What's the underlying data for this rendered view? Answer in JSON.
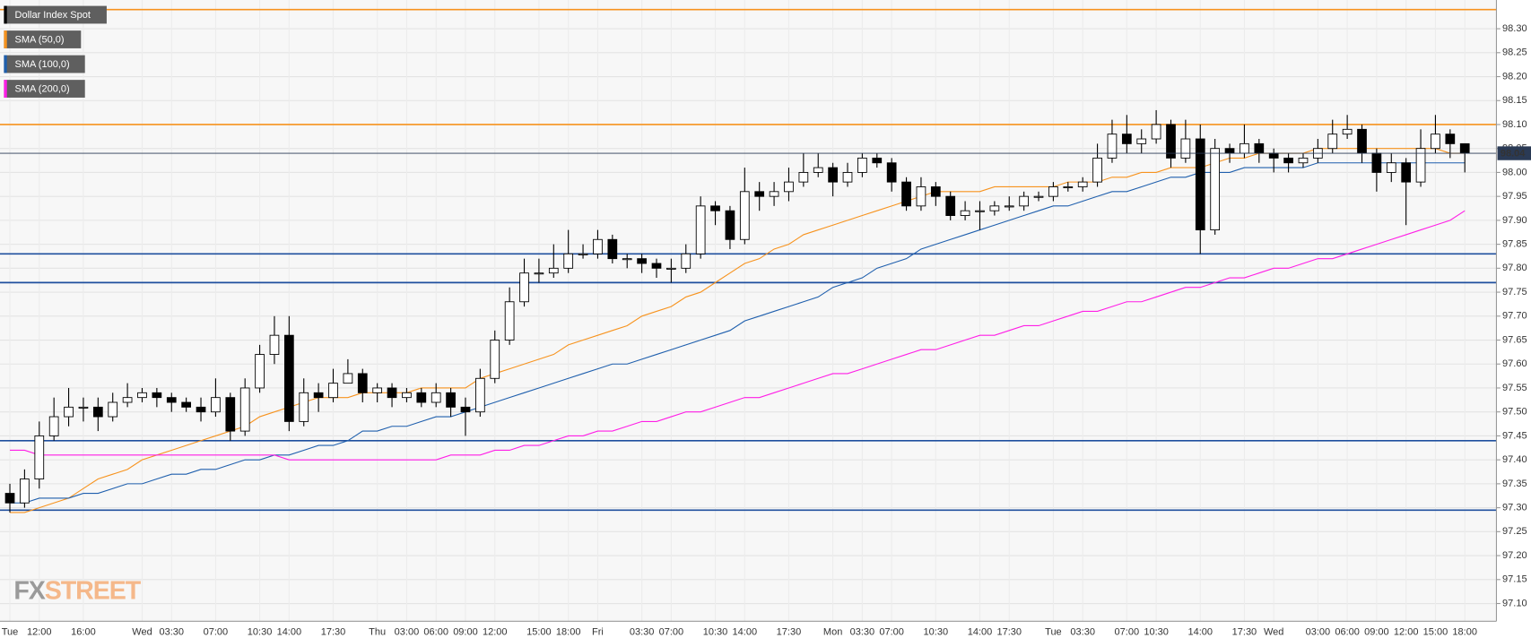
{
  "chart_data": {
    "type": "candlestick",
    "categories": [
      "Tue",
      null,
      "12:00",
      null,
      null,
      "16:00",
      null,
      null,
      null,
      "Wed",
      null,
      "03:30",
      null,
      null,
      "07:00",
      null,
      null,
      "10:30",
      null,
      "14:00",
      null,
      null,
      "17:30",
      null,
      null,
      "Thu",
      null,
      "03:00",
      null,
      "06:00",
      null,
      "09:00",
      null,
      "12:00",
      null,
      null,
      "15:00",
      null,
      "18:00",
      null,
      "Fri",
      null,
      null,
      "03:30",
      null,
      "07:00",
      null,
      null,
      "10:30",
      null,
      "14:00",
      null,
      null,
      "17:30",
      null,
      null,
      "Mon",
      null,
      "03:30",
      null,
      "07:00",
      null,
      null,
      "10:30",
      null,
      null,
      "14:00",
      null,
      "17:30",
      null,
      null,
      "Tue",
      null,
      "03:30",
      null,
      null,
      "07:00",
      null,
      "10:30",
      null,
      null,
      "14:00",
      null,
      null,
      "17:30",
      null,
      "Wed",
      null,
      null,
      "03:00",
      null,
      "06:00",
      null,
      "09:00",
      null,
      "12:00",
      null,
      "15:00",
      null,
      "18:00"
    ],
    "series": [
      {
        "name": "Dollar Index Spot",
        "color": "#000000",
        "open": [
          97.33,
          97.31,
          97.36,
          97.45,
          97.49,
          97.51,
          97.51,
          97.49,
          97.52,
          97.53,
          97.54,
          97.53,
          97.52,
          97.51,
          97.5,
          97.53,
          97.46,
          97.55,
          97.62,
          97.66,
          97.48,
          97.54,
          97.53,
          97.56,
          97.58,
          97.54,
          97.55,
          97.53,
          97.54,
          97.52,
          97.54,
          97.51,
          97.5,
          97.57,
          97.65,
          97.73,
          97.79,
          97.79,
          97.8,
          97.83,
          97.83,
          97.86,
          97.82,
          97.82,
          97.81,
          97.8,
          97.8,
          97.83,
          97.93,
          97.92,
          97.86,
          97.96,
          97.95,
          97.96,
          97.98,
          98.0,
          98.01,
          97.98,
          98.0,
          98.03,
          98.02,
          97.98,
          97.93,
          97.97,
          97.95,
          97.91,
          97.92,
          97.92,
          97.93,
          97.93,
          97.95,
          97.95,
          97.97,
          97.97,
          97.98,
          98.03,
          98.08,
          98.06,
          98.07,
          98.1,
          98.03,
          98.07,
          97.88,
          98.05,
          98.04,
          98.06,
          98.04,
          98.03,
          98.02,
          98.03,
          98.05,
          98.08,
          98.09,
          98.04,
          98.0,
          98.02,
          97.98,
          98.05,
          98.08,
          98.06
        ],
        "high": [
          97.35,
          97.38,
          97.48,
          97.53,
          97.55,
          97.53,
          97.53,
          97.54,
          97.56,
          97.55,
          97.55,
          97.54,
          97.53,
          97.53,
          97.57,
          97.54,
          97.57,
          97.64,
          97.7,
          97.7,
          97.57,
          97.56,
          97.59,
          97.61,
          97.59,
          97.56,
          97.56,
          97.55,
          97.55,
          97.56,
          97.55,
          97.53,
          97.59,
          97.67,
          97.76,
          97.82,
          97.82,
          97.85,
          97.88,
          97.85,
          97.88,
          97.87,
          97.83,
          97.83,
          97.82,
          97.82,
          97.85,
          97.95,
          97.94,
          97.93,
          98.01,
          97.98,
          97.98,
          98.01,
          98.04,
          98.04,
          98.02,
          98.02,
          98.04,
          98.04,
          98.03,
          97.99,
          97.99,
          97.98,
          97.96,
          97.94,
          97.94,
          97.94,
          97.95,
          97.96,
          97.96,
          97.98,
          97.98,
          97.99,
          98.06,
          98.11,
          98.12,
          98.09,
          98.13,
          98.11,
          98.11,
          98.1,
          98.07,
          98.06,
          98.1,
          98.07,
          98.05,
          98.04,
          98.04,
          98.07,
          98.11,
          98.12,
          98.1,
          98.05,
          98.04,
          98.03,
          98.09,
          98.12,
          98.09,
          98.06
        ],
        "low": [
          97.29,
          97.3,
          97.34,
          97.44,
          97.47,
          97.48,
          97.46,
          97.48,
          97.51,
          97.52,
          97.51,
          97.5,
          97.5,
          97.48,
          97.49,
          97.44,
          97.45,
          97.54,
          97.6,
          97.46,
          97.47,
          97.5,
          97.52,
          97.56,
          97.52,
          97.52,
          97.51,
          97.52,
          97.51,
          97.51,
          97.49,
          97.45,
          97.49,
          97.56,
          97.64,
          97.72,
          97.77,
          97.78,
          97.79,
          97.82,
          97.82,
          97.81,
          97.8,
          97.79,
          97.78,
          97.77,
          97.79,
          97.82,
          97.89,
          97.84,
          97.85,
          97.92,
          97.93,
          97.94,
          97.97,
          97.99,
          97.95,
          97.97,
          97.99,
          98.01,
          97.96,
          97.92,
          97.92,
          97.93,
          97.9,
          97.9,
          97.88,
          97.91,
          97.92,
          97.92,
          97.94,
          97.94,
          97.96,
          97.96,
          97.97,
          98.02,
          98.04,
          98.04,
          98.06,
          98.01,
          98.02,
          97.83,
          97.87,
          98.02,
          98.03,
          98.02,
          98.0,
          98.0,
          98.01,
          98.02,
          98.04,
          98.07,
          98.02,
          97.96,
          97.98,
          97.89,
          97.97,
          98.04,
          98.03,
          98.0
        ],
        "close": [
          97.31,
          97.36,
          97.45,
          97.49,
          97.51,
          97.51,
          97.49,
          97.52,
          97.53,
          97.54,
          97.53,
          97.52,
          97.51,
          97.5,
          97.53,
          97.46,
          97.55,
          97.62,
          97.66,
          97.48,
          97.54,
          97.53,
          97.56,
          97.58,
          97.54,
          97.55,
          97.53,
          97.54,
          97.52,
          97.54,
          97.51,
          97.5,
          97.57,
          97.65,
          97.73,
          97.79,
          97.79,
          97.8,
          97.83,
          97.83,
          97.86,
          97.82,
          97.82,
          97.81,
          97.8,
          97.8,
          97.83,
          97.93,
          97.92,
          97.86,
          97.96,
          97.95,
          97.96,
          97.98,
          98.0,
          98.01,
          97.98,
          98.0,
          98.03,
          98.02,
          97.98,
          97.93,
          97.97,
          97.95,
          97.91,
          97.92,
          97.92,
          97.93,
          97.93,
          97.95,
          97.95,
          97.97,
          97.97,
          97.98,
          98.03,
          98.08,
          98.06,
          98.07,
          98.1,
          98.03,
          98.07,
          97.88,
          98.05,
          98.04,
          98.06,
          98.04,
          98.03,
          98.02,
          98.03,
          98.05,
          98.08,
          98.09,
          98.04,
          98.0,
          98.02,
          97.98,
          98.05,
          98.08,
          98.06,
          98.04
        ]
      }
    ],
    "overlays": [
      {
        "name": "SMA (50,0)",
        "color": "#f7931e",
        "values": [
          97.29,
          97.29,
          97.3,
          97.31,
          97.32,
          97.34,
          97.36,
          97.37,
          97.38,
          97.4,
          97.41,
          97.42,
          97.43,
          97.44,
          97.45,
          97.46,
          97.47,
          97.49,
          97.5,
          97.51,
          97.52,
          97.53,
          97.53,
          97.53,
          97.54,
          97.54,
          97.54,
          97.54,
          97.55,
          97.55,
          97.55,
          97.55,
          97.57,
          97.58,
          97.59,
          97.6,
          97.61,
          97.62,
          97.64,
          97.65,
          97.66,
          97.67,
          97.68,
          97.7,
          97.71,
          97.72,
          97.74,
          97.75,
          97.77,
          97.79,
          97.81,
          97.82,
          97.84,
          97.85,
          97.87,
          97.88,
          97.89,
          97.9,
          97.91,
          97.92,
          97.93,
          97.94,
          97.95,
          97.96,
          97.96,
          97.96,
          97.96,
          97.97,
          97.97,
          97.97,
          97.97,
          97.97,
          97.98,
          97.98,
          97.98,
          97.99,
          97.99,
          98.0,
          98.0,
          98.01,
          98.01,
          98.01,
          98.02,
          98.03,
          98.03,
          98.04,
          98.04,
          98.04,
          98.04,
          98.05,
          98.05,
          98.05,
          98.05,
          98.05,
          98.05,
          98.05,
          98.05,
          98.05,
          98.04,
          98.04
        ]
      },
      {
        "name": "SMA (100,0)",
        "color": "#1f5fad",
        "values": [
          97.31,
          97.31,
          97.32,
          97.32,
          97.32,
          97.33,
          97.33,
          97.34,
          97.35,
          97.35,
          97.36,
          97.37,
          97.37,
          97.38,
          97.38,
          97.39,
          97.4,
          97.4,
          97.41,
          97.41,
          97.42,
          97.43,
          97.43,
          97.44,
          97.46,
          97.46,
          97.47,
          97.47,
          97.48,
          97.49,
          97.49,
          97.5,
          97.51,
          97.52,
          97.53,
          97.54,
          97.55,
          97.56,
          97.57,
          97.58,
          97.59,
          97.6,
          97.6,
          97.61,
          97.62,
          97.63,
          97.64,
          97.65,
          97.66,
          97.67,
          97.69,
          97.7,
          97.71,
          97.72,
          97.73,
          97.74,
          97.76,
          97.77,
          97.78,
          97.8,
          97.81,
          97.82,
          97.84,
          97.85,
          97.86,
          97.87,
          97.88,
          97.89,
          97.9,
          97.91,
          97.92,
          97.93,
          97.93,
          97.94,
          97.95,
          97.96,
          97.96,
          97.97,
          97.98,
          97.99,
          97.99,
          98.0,
          98.0,
          98.0,
          98.01,
          98.01,
          98.01,
          98.01,
          98.01,
          98.02,
          98.02,
          98.02,
          98.02,
          98.02,
          98.02,
          98.02,
          98.02,
          98.02,
          98.02,
          98.02
        ]
      },
      {
        "name": "SMA (200,0)",
        "color": "#ff1ee6",
        "values": [
          97.42,
          97.42,
          97.41,
          97.41,
          97.41,
          97.41,
          97.41,
          97.41,
          97.41,
          97.41,
          97.41,
          97.41,
          97.41,
          97.41,
          97.41,
          97.41,
          97.41,
          97.41,
          97.41,
          97.4,
          97.4,
          97.4,
          97.4,
          97.4,
          97.4,
          97.4,
          97.4,
          97.4,
          97.4,
          97.4,
          97.41,
          97.41,
          97.41,
          97.42,
          97.42,
          97.43,
          97.43,
          97.44,
          97.45,
          97.45,
          97.46,
          97.46,
          97.47,
          97.48,
          97.48,
          97.49,
          97.5,
          97.5,
          97.51,
          97.52,
          97.53,
          97.53,
          97.54,
          97.55,
          97.56,
          97.57,
          97.58,
          97.58,
          97.59,
          97.6,
          97.61,
          97.62,
          97.63,
          97.63,
          97.64,
          97.65,
          97.66,
          97.66,
          97.67,
          97.68,
          97.68,
          97.69,
          97.7,
          97.71,
          97.71,
          97.72,
          97.73,
          97.73,
          97.74,
          97.75,
          97.76,
          97.76,
          97.77,
          97.78,
          97.78,
          97.79,
          97.8,
          97.8,
          97.81,
          97.82,
          97.82,
          97.83,
          97.84,
          97.85,
          97.86,
          97.87,
          97.88,
          97.89,
          97.9,
          97.92
        ]
      }
    ],
    "levels": [
      {
        "value": 98.34,
        "color": "#f7931e"
      },
      {
        "value": 98.1,
        "color": "#f7931e"
      },
      {
        "value": 97.83,
        "color": "#1f4f9e"
      },
      {
        "value": 97.77,
        "color": "#1f4f9e"
      },
      {
        "value": 97.44,
        "color": "#1f4f9e"
      },
      {
        "value": 97.295,
        "color": "#1f4f9e"
      }
    ],
    "last_price": 98.04,
    "last_price_color": "#2a3a55",
    "ylim": [
      97.063,
      98.36
    ],
    "yticks": [
      {
        "value": 97.1,
        "label": "97.10"
      },
      97.15,
      {
        "value": 97.2,
        "label": "97.20"
      },
      97.25,
      {
        "value": 97.3,
        "label": "97.30"
      },
      97.35,
      {
        "value": 97.4,
        "label": "97.40"
      },
      97.45,
      {
        "value": 97.5,
        "label": "97.50"
      },
      97.55,
      {
        "value": 97.6,
        "label": "97.60"
      },
      97.65,
      {
        "value": 97.7,
        "label": "97.70"
      },
      97.75,
      {
        "value": 97.8,
        "label": "97.80"
      },
      97.85,
      {
        "value": 97.9,
        "label": "97.90"
      },
      97.95,
      {
        "value": 98,
        "label": "98.00"
      },
      98.05,
      {
        "value": 98.1,
        "label": "98.10"
      },
      98.15,
      {
        "value": 98.2,
        "label": "98.20"
      },
      98.25,
      {
        "value": 98.3,
        "label": "98.30"
      }
    ],
    "grid": true,
    "legend": "top-left",
    "watermark": [
      "FX",
      "STREET"
    ]
  }
}
